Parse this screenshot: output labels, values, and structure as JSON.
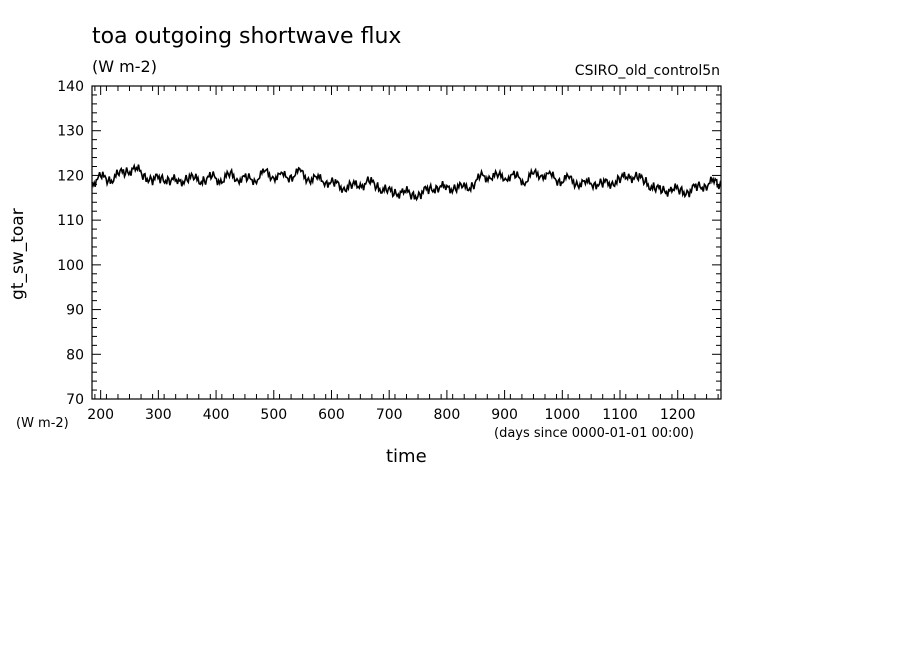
{
  "chart_data": {
    "type": "line",
    "title": "toa outgoing shortwave flux",
    "subtitle": "(W m-2)",
    "dataset_label": "CSIRO_old_control5n",
    "xlabel": "time",
    "xlabel_units": "(days since 0000-01-01 00:00)",
    "ylabel": "gt_sw_toar",
    "ylabel_units": "(W m-2)",
    "xlim": [
      185,
      1275
    ],
    "ylim": [
      70,
      140
    ],
    "xticks": [
      200,
      300,
      400,
      500,
      600,
      700,
      800,
      900,
      1000,
      1100,
      1200
    ],
    "yticks": [
      70,
      80,
      90,
      100,
      110,
      120,
      130,
      140
    ],
    "grid": false,
    "series": [
      {
        "x": [
          185,
          200,
          215,
          230,
          245,
          260,
          275,
          290,
          305,
          320,
          335,
          350,
          365,
          380,
          395,
          410,
          425,
          440,
          455,
          470,
          485,
          500,
          515,
          530,
          545,
          560,
          575,
          590,
          605,
          620,
          635,
          650,
          665,
          680,
          695,
          710,
          725,
          740,
          755,
          770,
          785,
          800,
          815,
          830,
          845,
          860,
          875,
          890,
          905,
          920,
          935,
          950,
          965,
          980,
          995,
          1010,
          1025,
          1040,
          1055,
          1070,
          1085,
          1100,
          1115,
          1130,
          1145,
          1160,
          1175,
          1190,
          1205,
          1220,
          1235,
          1250,
          1265,
          1275
        ],
        "y": [
          118.5,
          119.5,
          119,
          120,
          121,
          121.5,
          120,
          119,
          119.5,
          119,
          118.5,
          119.5,
          119,
          119,
          119.5,
          119,
          120,
          119.5,
          119,
          119.5,
          120.5,
          120,
          119.5,
          120,
          120.5,
          119.5,
          119,
          119,
          118,
          117.5,
          117.5,
          118,
          118.5,
          117.5,
          116.5,
          116,
          116.5,
          115.5,
          116,
          117,
          117.5,
          117,
          117.5,
          117,
          118,
          119.5,
          120,
          119.5,
          120,
          119.5,
          119,
          120,
          120.5,
          119.5,
          119,
          119,
          118.5,
          118,
          118.5,
          118,
          118.5,
          119,
          120,
          119.5,
          118.5,
          117,
          116.5,
          117,
          116.5,
          116.5,
          117.5,
          118,
          118.5,
          118
        ]
      }
    ]
  }
}
